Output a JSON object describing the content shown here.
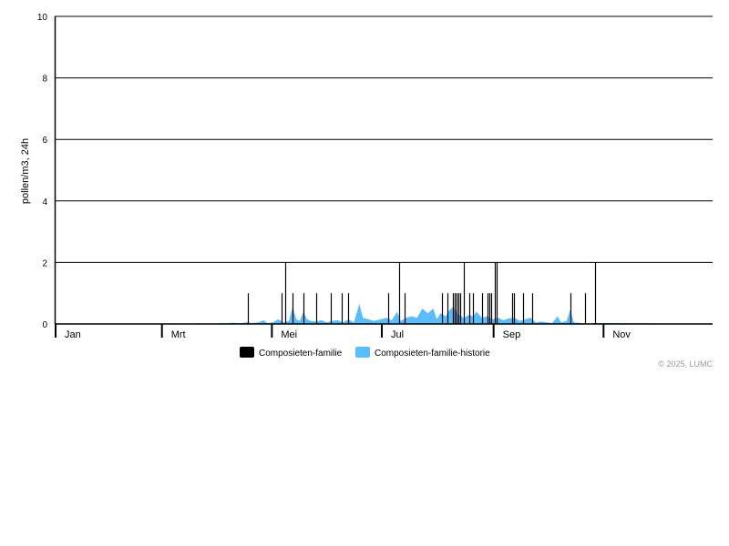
{
  "chart_data": {
    "type": "area",
    "ylabel": "pollen/m3, 24h",
    "ylim": [
      0,
      10
    ],
    "yticks": [
      0,
      2,
      4,
      6,
      8,
      10
    ],
    "grid": true,
    "xticks": [
      {
        "label": "Jan",
        "date": "01-01"
      },
      {
        "label": "Mrt",
        "date": "03-01"
      },
      {
        "label": "Mei",
        "date": "05-01"
      },
      {
        "label": "Jul",
        "date": "07-01"
      },
      {
        "label": "Sep",
        "date": "09-01"
      },
      {
        "label": "Nov",
        "date": "11-01"
      }
    ],
    "legend_position": "bottom",
    "series": [
      {
        "name": "Composieten-familie",
        "kind": "bar",
        "color": "#000000",
        "points": [
          [
            "04-18",
            1
          ],
          [
            "05-07",
            1
          ],
          [
            "05-09",
            2
          ],
          [
            "05-13",
            1
          ],
          [
            "05-19",
            1
          ],
          [
            "05-26",
            1
          ],
          [
            "06-03",
            1
          ],
          [
            "06-09",
            1
          ],
          [
            "06-13",
            1
          ],
          [
            "07-05",
            1
          ],
          [
            "07-11",
            2
          ],
          [
            "07-14",
            1
          ],
          [
            "08-04",
            1
          ],
          [
            "08-07",
            1
          ],
          [
            "08-10",
            1
          ],
          [
            "08-11",
            1
          ],
          [
            "08-12",
            1
          ],
          [
            "08-13",
            1
          ],
          [
            "08-14",
            1
          ],
          [
            "08-16",
            2
          ],
          [
            "08-19",
            1
          ],
          [
            "08-21",
            1
          ],
          [
            "08-26",
            1
          ],
          [
            "08-29",
            1
          ],
          [
            "08-30",
            1
          ],
          [
            "08-31",
            1
          ],
          [
            "09-02",
            2
          ],
          [
            "09-03",
            2
          ],
          [
            "09-12",
            1
          ],
          [
            "09-13",
            1
          ],
          [
            "09-18",
            1
          ],
          [
            "09-23",
            1
          ],
          [
            "10-14",
            1
          ],
          [
            "10-22",
            1
          ],
          [
            "10-28",
            2
          ]
        ]
      },
      {
        "name": "Composieten-familie-historie",
        "kind": "area",
        "color": "#5bbcfb",
        "points": [
          [
            "01-01",
            0
          ],
          [
            "03-05",
            0
          ],
          [
            "03-07",
            0.03
          ],
          [
            "03-09",
            0
          ],
          [
            "03-20",
            0
          ],
          [
            "03-22",
            0.03
          ],
          [
            "03-24",
            0
          ],
          [
            "04-01",
            0
          ],
          [
            "04-03",
            0.03
          ],
          [
            "04-06",
            0.02
          ],
          [
            "04-10",
            0.04
          ],
          [
            "04-14",
            0.02
          ],
          [
            "04-18",
            0.06
          ],
          [
            "04-20",
            0.03
          ],
          [
            "04-24",
            0.05
          ],
          [
            "04-27",
            0.12
          ],
          [
            "04-29",
            0.03
          ],
          [
            "05-02",
            0.05
          ],
          [
            "05-05",
            0.15
          ],
          [
            "05-08",
            0.05
          ],
          [
            "05-11",
            0.1
          ],
          [
            "05-13",
            0.55
          ],
          [
            "05-15",
            0.15
          ],
          [
            "05-17",
            0.1
          ],
          [
            "05-19",
            0.4
          ],
          [
            "05-21",
            0.15
          ],
          [
            "05-23",
            0.1
          ],
          [
            "05-26",
            0.08
          ],
          [
            "05-29",
            0.12
          ],
          [
            "06-01",
            0.05
          ],
          [
            "06-04",
            0.1
          ],
          [
            "06-07",
            0.12
          ],
          [
            "06-10",
            0.05
          ],
          [
            "06-13",
            0.15
          ],
          [
            "06-16",
            0.05
          ],
          [
            "06-19",
            0.65
          ],
          [
            "06-21",
            0.2
          ],
          [
            "06-24",
            0.15
          ],
          [
            "06-27",
            0.1
          ],
          [
            "07-01",
            0.15
          ],
          [
            "07-04",
            0.2
          ],
          [
            "07-07",
            0.12
          ],
          [
            "07-10",
            0.4
          ],
          [
            "07-12",
            0.1
          ],
          [
            "07-15",
            0.2
          ],
          [
            "07-18",
            0.25
          ],
          [
            "07-21",
            0.2
          ],
          [
            "07-24",
            0.5
          ],
          [
            "07-27",
            0.35
          ],
          [
            "07-30",
            0.5
          ],
          [
            "08-01",
            0.15
          ],
          [
            "08-03",
            0.35
          ],
          [
            "08-06",
            0.25
          ],
          [
            "08-08",
            0.45
          ],
          [
            "08-10",
            0.55
          ],
          [
            "08-13",
            0.3
          ],
          [
            "08-16",
            0.2
          ],
          [
            "08-19",
            0.3
          ],
          [
            "08-21",
            0.25
          ],
          [
            "08-23",
            0.4
          ],
          [
            "08-26",
            0.2
          ],
          [
            "08-29",
            0.25
          ],
          [
            "09-01",
            0.15
          ],
          [
            "09-04",
            0.2
          ],
          [
            "09-07",
            0.12
          ],
          [
            "09-10",
            0.18
          ],
          [
            "09-13",
            0.2
          ],
          [
            "09-16",
            0.1
          ],
          [
            "09-19",
            0.15
          ],
          [
            "09-22",
            0.2
          ],
          [
            "09-25",
            0.05
          ],
          [
            "09-28",
            0.08
          ],
          [
            "10-01",
            0.05
          ],
          [
            "10-04",
            0.03
          ],
          [
            "10-07",
            0.25
          ],
          [
            "10-09",
            0.05
          ],
          [
            "10-12",
            0.1
          ],
          [
            "10-14",
            0.45
          ],
          [
            "10-16",
            0.05
          ],
          [
            "10-20",
            0.03
          ],
          [
            "10-25",
            0
          ],
          [
            "10-27",
            0.03
          ],
          [
            "11-05",
            0.03
          ],
          [
            "11-25",
            0.02
          ],
          [
            "12-31",
            0
          ]
        ]
      }
    ],
    "credit": "© 2025, LUMC"
  }
}
